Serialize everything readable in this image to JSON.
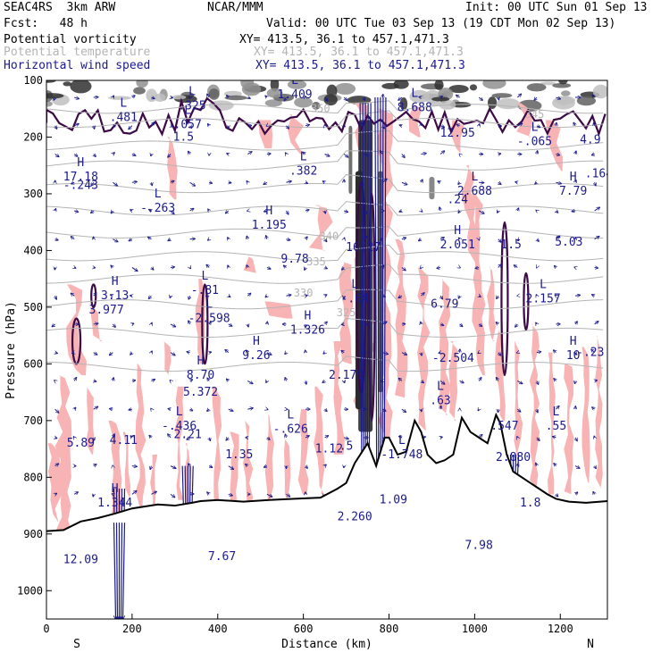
{
  "header": {
    "experiment": "SEAC4RS  3km ARW",
    "forecast": "Fcst:   48 h",
    "center": "NCAR/MMM",
    "init": "Init: 00 UTC Sun 01 Sep 13",
    "valid": "Valid: 00 UTC Tue 03 Sep 13 (19 CDT Mon 02 Sep 13)",
    "fields": [
      {
        "name": "Potential vorticity",
        "xy": "XY= 413.5, 36.1 to 457.1,471.3",
        "color": "#000000"
      },
      {
        "name": "Potential temperature",
        "xy": "XY= 413.5, 36.1 to 457.1,471.3",
        "color": "#b4b4b4"
      },
      {
        "name": "Horizontal wind speed",
        "xy": "XY= 413.5, 36.1 to 457.1,471.3",
        "color": "#1a1a8c"
      }
    ]
  },
  "chart_data": {
    "type": "cross-section",
    "xlabel": "Distance (km)",
    "ylabel": "Pressure (hPa)",
    "xlim": [
      0,
      1310
    ],
    "ylim": [
      1050,
      100
    ],
    "x_ticks": [
      0,
      200,
      400,
      600,
      800,
      1000,
      1200
    ],
    "y_ticks": [
      100,
      200,
      300,
      400,
      500,
      600,
      700,
      800,
      900,
      1000
    ],
    "left_end_label": "S",
    "right_end_label": "N",
    "colors": {
      "pv_fill": "#f8b4b4",
      "pv_contour": "#3c0a46",
      "terrain": "#000000",
      "theta": "#b4b4b4",
      "wind": "#1a1a8c",
      "label": "#1a1a8c"
    },
    "terrain": [
      [
        0,
        895
      ],
      [
        40,
        893
      ],
      [
        80,
        878
      ],
      [
        120,
        872
      ],
      [
        160,
        864
      ],
      [
        200,
        855
      ],
      [
        260,
        848
      ],
      [
        300,
        850
      ],
      [
        340,
        845
      ],
      [
        360,
        842
      ],
      [
        400,
        840
      ],
      [
        460,
        843
      ],
      [
        520,
        840
      ],
      [
        580,
        838
      ],
      [
        640,
        836
      ],
      [
        680,
        820
      ],
      [
        700,
        810
      ],
      [
        720,
        775
      ],
      [
        750,
        740
      ],
      [
        770,
        780
      ],
      [
        790,
        730
      ],
      [
        800,
        730
      ],
      [
        820,
        760
      ],
      [
        840,
        755
      ],
      [
        860,
        700
      ],
      [
        875,
        720
      ],
      [
        890,
        760
      ],
      [
        910,
        775
      ],
      [
        930,
        770
      ],
      [
        950,
        760
      ],
      [
        970,
        695
      ],
      [
        990,
        720
      ],
      [
        1010,
        730
      ],
      [
        1030,
        740
      ],
      [
        1050,
        690
      ],
      [
        1060,
        705
      ],
      [
        1075,
        760
      ],
      [
        1090,
        790
      ],
      [
        1110,
        800
      ],
      [
        1130,
        810
      ],
      [
        1150,
        820
      ],
      [
        1170,
        830
      ],
      [
        1190,
        838
      ],
      [
        1220,
        843
      ],
      [
        1260,
        845
      ],
      [
        1310,
        842
      ]
    ],
    "theta_levels": [
      {
        "label": "350",
        "x": 640,
        "p": 150
      },
      {
        "label": "345",
        "x": 1140,
        "p": 160
      },
      {
        "label": "340",
        "x": 660,
        "p": 375
      },
      {
        "label": "335",
        "x": 630,
        "p": 420
      },
      {
        "label": "330",
        "x": 600,
        "p": 475
      },
      {
        "label": "325",
        "x": 700,
        "p": 510
      }
    ],
    "extrema": [
      {
        "type": "L",
        "value": ".481",
        "x": 180,
        "p": 165
      },
      {
        "type": "L",
        "value": ".325",
        "x": 340,
        "p": 145
      },
      {
        "type": "L",
        "value": ".057",
        "x": 330,
        "p": 178
      },
      {
        "type": "",
        "value": "1.5",
        "x": 320,
        "p": 200
      },
      {
        "type": "L",
        "value": "1.409",
        "x": 580,
        "p": 125
      },
      {
        "type": "H",
        "value": "17.18",
        "x": 80,
        "p": 270
      },
      {
        "type": "",
        "value": "-.243",
        "x": 80,
        "p": 285
      },
      {
        "type": "L",
        "value": ".382",
        "x": 600,
        "p": 260
      },
      {
        "type": "L",
        "value": "8.688",
        "x": 860,
        "p": 148
      },
      {
        "type": "",
        "value": "12.95",
        "x": 960,
        "p": 193
      },
      {
        "type": "L",
        "value": "-.065",
        "x": 1140,
        "p": 208
      },
      {
        "type": "",
        "value": "4.9",
        "x": 1270,
        "p": 205
      },
      {
        "type": "H",
        "value": "7.79",
        "x": 1230,
        "p": 295
      },
      {
        "type": "",
        "value": ".164",
        "x": 1290,
        "p": 265
      },
      {
        "type": "L",
        "value": "-.263",
        "x": 260,
        "p": 325
      },
      {
        "type": "H",
        "value": "1.195",
        "x": 520,
        "p": 355
      },
      {
        "type": "L",
        "value": "2.688",
        "x": 1000,
        "p": 295
      },
      {
        "type": "",
        "value": ".24",
        "x": 960,
        "p": 310
      },
      {
        "type": "",
        "value": "9.78",
        "x": 580,
        "p": 415
      },
      {
        "type": "",
        "value": "16.27",
        "x": 740,
        "p": 395
      },
      {
        "type": "H",
        "value": "2.051",
        "x": 960,
        "p": 390
      },
      {
        "type": "",
        "value": "1.5",
        "x": 1085,
        "p": 390
      },
      {
        "type": "",
        "value": "5.03",
        "x": 1220,
        "p": 385
      },
      {
        "type": "H",
        "value": "3.13",
        "x": 160,
        "p": 480
      },
      {
        "type": "",
        "value": "3.977",
        "x": 140,
        "p": 505
      },
      {
        "type": "L",
        "value": "-.81",
        "x": 370,
        "p": 470
      },
      {
        "type": "L",
        "value": "-2.598",
        "x": 380,
        "p": 520
      },
      {
        "type": "H",
        "value": "1.326",
        "x": 610,
        "p": 540
      },
      {
        "type": "L",
        "value": "-.64",
        "x": 720,
        "p": 485
      },
      {
        "type": "",
        "value": "6.79",
        "x": 930,
        "p": 495
      },
      {
        "type": "L",
        "value": "2.157",
        "x": 1160,
        "p": 485
      },
      {
        "type": "H",
        "value": "8.70",
        "x": 360,
        "p": 620
      },
      {
        "type": "",
        "value": "5.372",
        "x": 360,
        "p": 650
      },
      {
        "type": "H",
        "value": "9.26",
        "x": 490,
        "p": 585
      },
      {
        "type": "",
        "value": "-2.504",
        "x": 950,
        "p": 590
      },
      {
        "type": "H",
        "value": "10",
        "x": 1230,
        "p": 585
      },
      {
        "type": "",
        "value": "-.23",
        "x": 1270,
        "p": 580
      },
      {
        "type": "",
        "value": "2.179",
        "x": 700,
        "p": 620
      },
      {
        "type": "L",
        "value": ".63",
        "x": 920,
        "p": 665
      },
      {
        "type": "L",
        "value": "-.436",
        "x": 310,
        "p": 710
      },
      {
        "type": "",
        "value": "2.21",
        "x": 330,
        "p": 725
      },
      {
        "type": "",
        "value": "5.89",
        "x": 80,
        "p": 740
      },
      {
        "type": "",
        "value": "4.11",
        "x": 180,
        "p": 735
      },
      {
        "type": "L",
        "value": "-.626",
        "x": 570,
        "p": 715
      },
      {
        "type": "",
        "value": "1.35",
        "x": 450,
        "p": 760
      },
      {
        "type": "",
        "value": "1.12",
        "x": 660,
        "p": 750
      },
      {
        "type": "",
        "value": ".5",
        "x": 700,
        "p": 745
      },
      {
        "type": "L",
        "value": "-1.748",
        "x": 830,
        "p": 760
      },
      {
        "type": "",
        "value": ".547",
        "x": 1070,
        "p": 710
      },
      {
        "type": "L",
        "value": ".55",
        "x": 1190,
        "p": 710
      },
      {
        "type": "",
        "value": "2.880",
        "x": 1090,
        "p": 765
      },
      {
        "type": "H",
        "value": "1.344",
        "x": 160,
        "p": 845
      },
      {
        "type": "",
        "value": "2.260",
        "x": 720,
        "p": 870
      },
      {
        "type": "",
        "value": "1.09",
        "x": 810,
        "p": 840
      },
      {
        "type": "",
        "value": "1.8",
        "x": 1130,
        "p": 845
      },
      {
        "type": "",
        "value": "7.98",
        "x": 1010,
        "p": 920
      },
      {
        "type": "",
        "value": "12.09",
        "x": 80,
        "p": 945
      },
      {
        "type": "",
        "value": "7.67",
        "x": 410,
        "p": 940
      }
    ]
  }
}
